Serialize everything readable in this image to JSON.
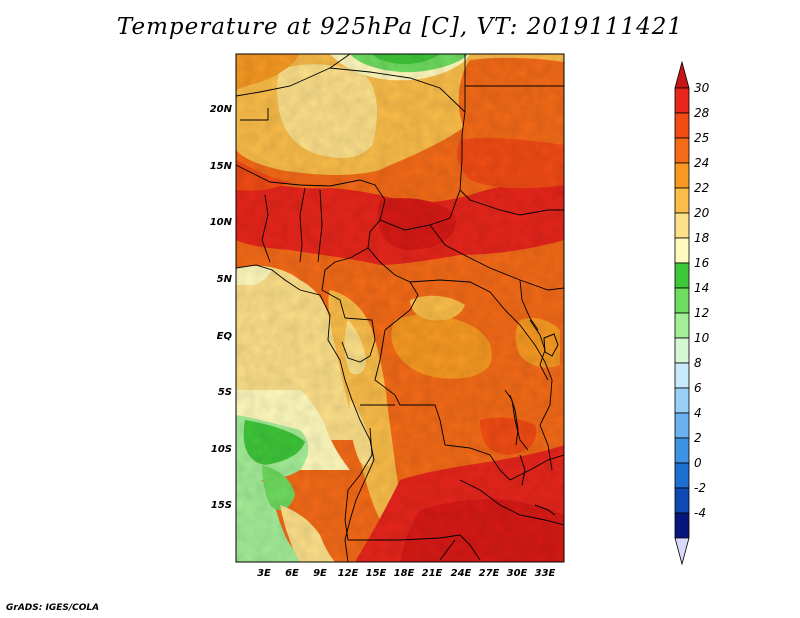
{
  "title": "Temperature at 925hPa [C], VT: 2019111421",
  "credit": "GrADS: IGES/COLA",
  "lat_labels": [
    "20N",
    "15N",
    "10N",
    "5N",
    "EQ",
    "5S",
    "10S",
    "15S"
  ],
  "lon_labels": [
    "3E",
    "6E",
    "9E",
    "12E",
    "15E",
    "18E",
    "21E",
    "24E",
    "27E",
    "30E",
    "33E"
  ],
  "colorbar": {
    "labels": [
      "30",
      "28",
      "25",
      "24",
      "22",
      "20",
      "18",
      "16",
      "14",
      "12",
      "10",
      "8",
      "6",
      "4",
      "2",
      "0",
      "-2",
      "-4"
    ],
    "colors": [
      "#e8261c",
      "#f24c14",
      "#f56b18",
      "#f89a22",
      "#fbbe4a",
      "#fde18a",
      "#fffbbe",
      "#3fc73a",
      "#6fdd60",
      "#a4ee98",
      "#d4f7d4",
      "#c8e8fb",
      "#9bd0f6",
      "#69b2ef",
      "#3e92e4",
      "#1e6fd2",
      "#0f4ab3",
      "#05177d"
    ],
    "arrow_top_color": "#c81616",
    "arrow_bottom_color": "#d8d8f8"
  }
}
